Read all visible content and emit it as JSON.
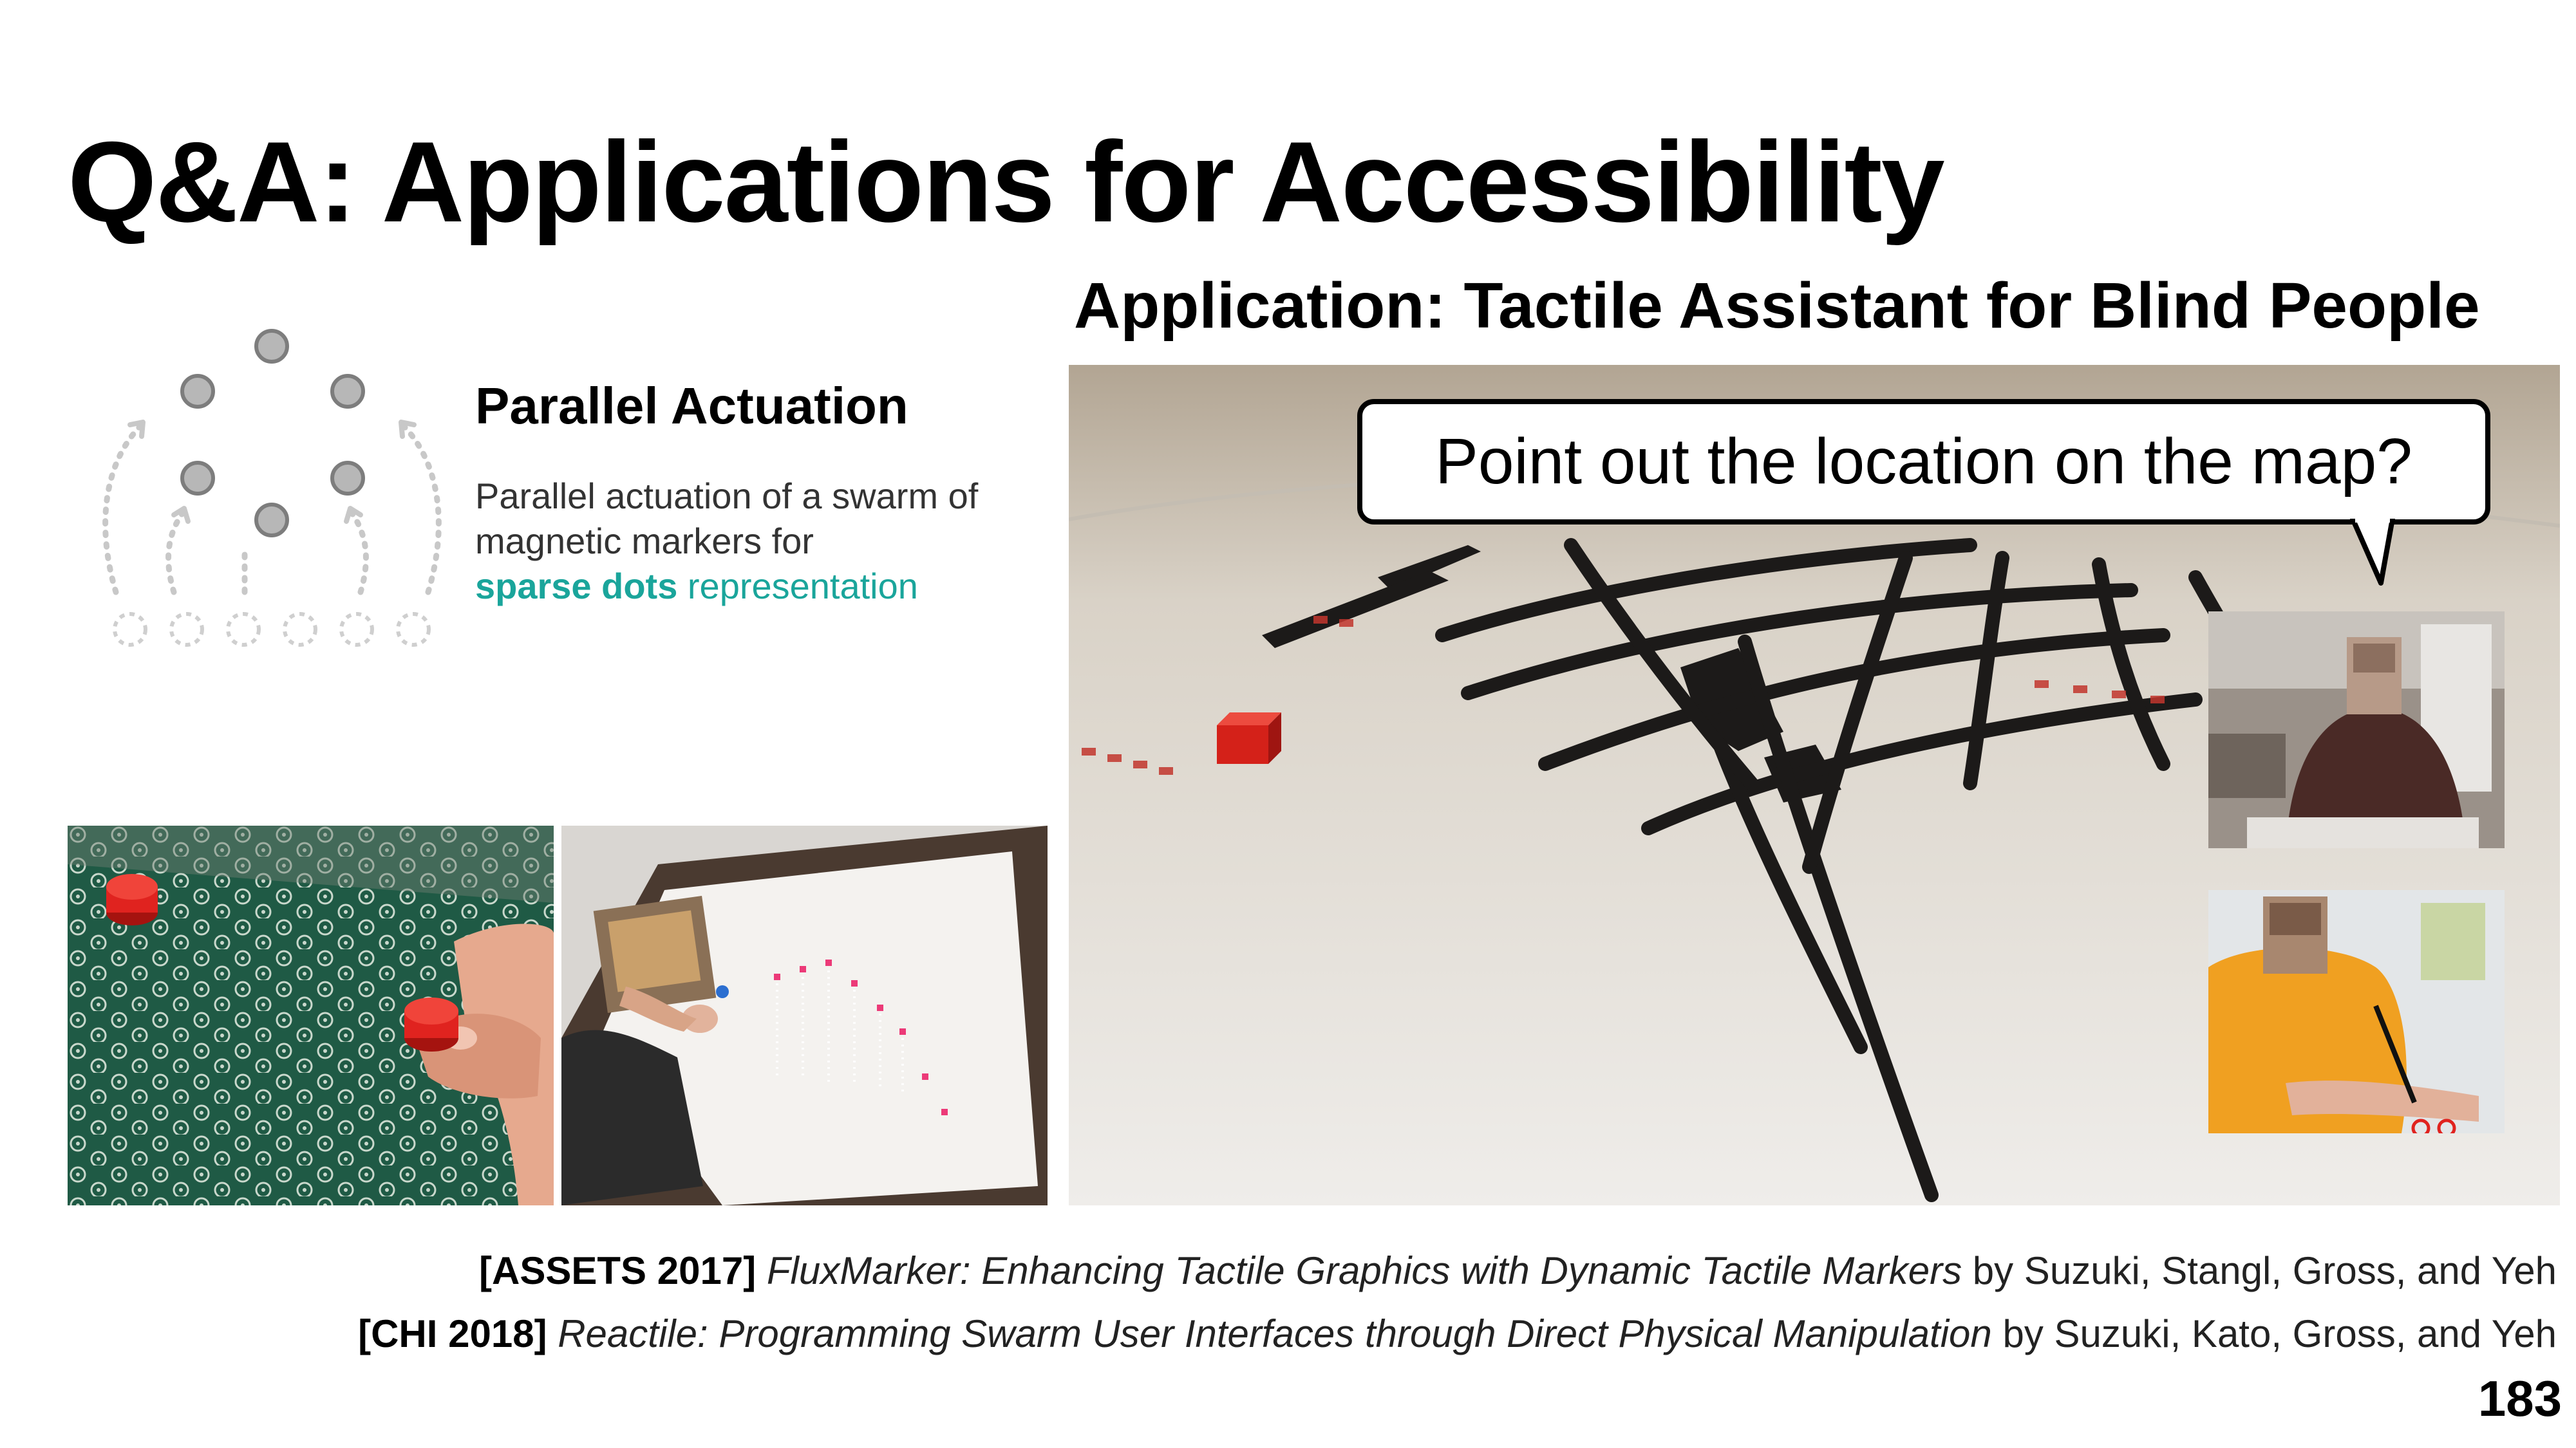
{
  "slide": {
    "title": "Q&A: Applications for Accessibility",
    "page_number": "183"
  },
  "application": {
    "heading": "Application: Tactile Assistant for Blind People",
    "speech_bubble": "Point out the location on the map?"
  },
  "parallel_actuation": {
    "title": "Parallel Actuation",
    "line1": "Parallel actuation of a swarm of",
    "line2": "magnetic markers for",
    "highlight": "sparse dots",
    "line3_rest": " representation"
  },
  "citations": [
    {
      "venue": "[ASSETS 2017]",
      "title": "FluxMarker: Enhancing Tactile Graphics with Dynamic Tactile Markers",
      "authors": " by Suzuki, Stangl, Gross, and Yeh"
    },
    {
      "venue": "[CHI 2018]",
      "title": "Reactile: Programming Swarm User Interfaces through Direct Physical Manipulation",
      "authors": " by Suzuki, Kato, Gross, and Yeh"
    }
  ],
  "colors": {
    "accent_teal": "#1aa59b",
    "marker_red": "#e0231f",
    "board_green": "#1f5a45"
  }
}
